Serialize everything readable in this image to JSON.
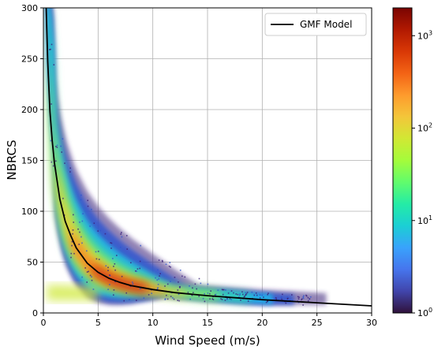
{
  "chart_data": {
    "type": "heatmap",
    "xlabel": "Wind Speed (m/s)",
    "ylabel": "NBRCS",
    "xlim": [
      0,
      30
    ],
    "ylim": [
      0,
      300
    ],
    "xticks": [
      "0",
      "5",
      "10",
      "15",
      "20",
      "25",
      "30"
    ],
    "yticks": [
      "0",
      "50",
      "100",
      "150",
      "200",
      "250",
      "300"
    ],
    "grid": true,
    "legend": {
      "placement": "top-right",
      "entries": [
        {
          "name": "GMF Model",
          "color": "#000000"
        }
      ]
    },
    "colorbar": {
      "scale": "log",
      "range": [
        1,
        2000
      ],
      "tick_values": [
        1,
        10,
        100,
        1000
      ],
      "tick_labels": [
        {
          "base": "10",
          "exp": "0"
        },
        {
          "base": "10",
          "exp": "1"
        },
        {
          "base": "10",
          "exp": "2"
        },
        {
          "base": "10",
          "exp": "3"
        }
      ],
      "colormap": "jet",
      "colors": [
        "#30123b",
        "#4145ab",
        "#4675ed",
        "#39a2fc",
        "#1bcfd4",
        "#24eca6",
        "#61fc6c",
        "#a4fc3b",
        "#d1e834",
        "#f3c63a",
        "#fe9b2d",
        "#f36315",
        "#d93806",
        "#b11901",
        "#7a0402"
      ]
    },
    "series": [
      {
        "name": "GMF Model",
        "type": "line",
        "color": "#000000",
        "x": [
          0.25,
          0.4,
          0.6,
          0.8,
          1,
          1.5,
          2,
          2.5,
          3,
          4,
          5,
          6,
          7,
          8,
          10,
          12,
          15,
          20,
          25,
          30
        ],
        "y": [
          300,
          247,
          198,
          170,
          148,
          112,
          90,
          76,
          64,
          49,
          40,
          34,
          30,
          27,
          23,
          20,
          17,
          13,
          10,
          7
        ]
      }
    ],
    "density_description": {
      "note": "2D histogram of NBRCS vs wind speed; counts in log scale, peak density near 5-10 m/s and NBRCS 15-35"
    }
  }
}
